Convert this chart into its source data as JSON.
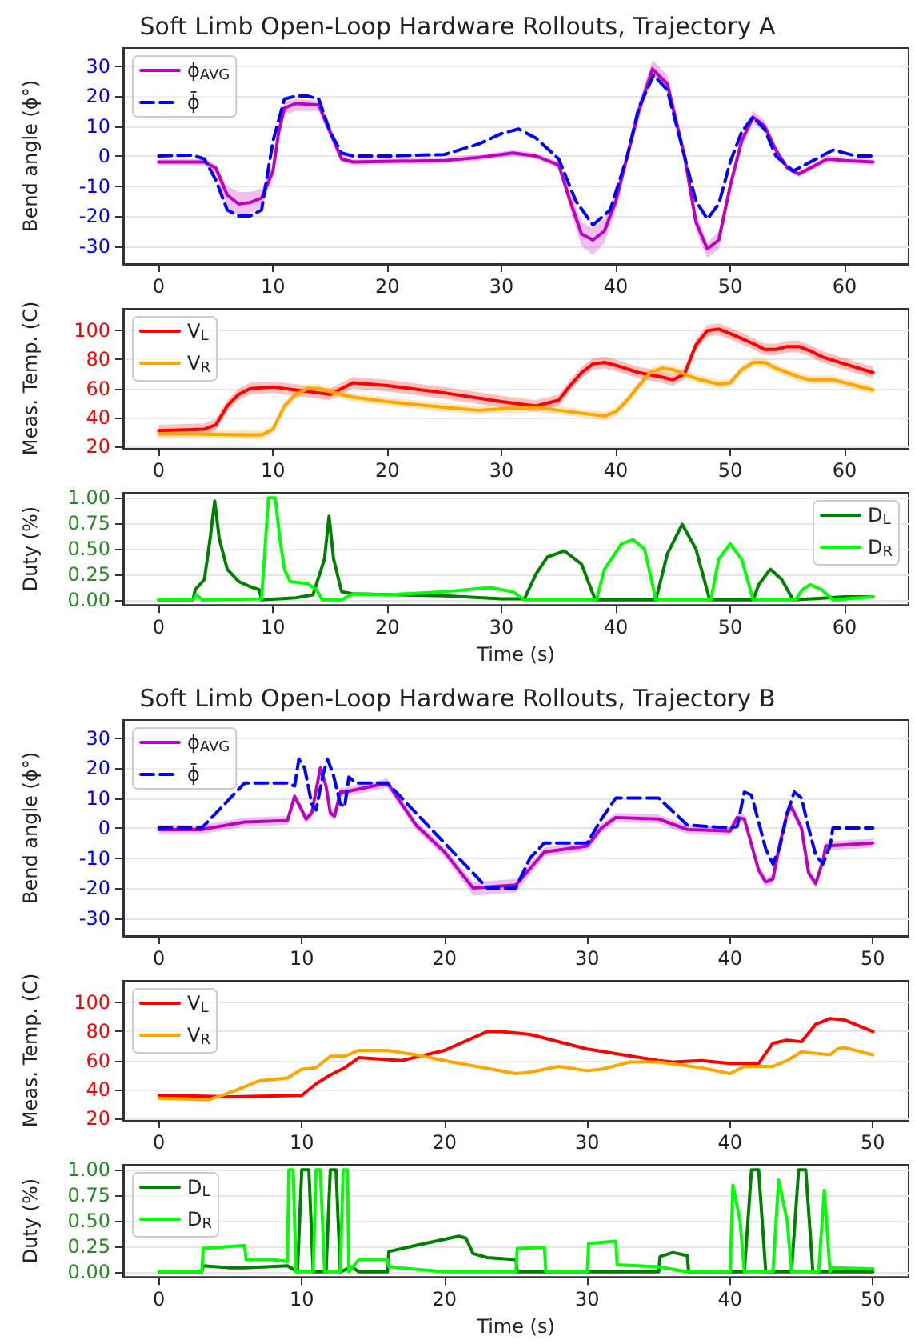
{
  "chart_data": [
    {
      "type": "line",
      "title": "Soft Limb Open-Loop Hardware Rollouts, Trajectory A",
      "ylabel": "Bend angle (ϕ°)",
      "xlim": [
        -3.1,
        65.6
      ],
      "xticks": [
        0,
        10,
        20,
        30,
        40,
        50,
        60
      ],
      "ylim": [
        -36,
        36
      ],
      "yticks": [
        -30,
        -20,
        -10,
        0,
        10,
        20,
        30
      ],
      "grid": "y",
      "legend": "top left",
      "marker": "none",
      "series": [
        {
          "name": "ϕ$_{AVG}$",
          "color": "#bf00bf",
          "x": [
            0,
            4,
            5,
            6,
            7,
            8,
            9,
            10,
            10.5,
            11,
            12,
            14,
            15,
            16,
            17,
            25,
            28,
            31,
            33,
            35,
            36,
            37,
            38,
            39,
            40,
            41,
            42,
            43.2,
            44.5,
            46,
            47,
            48,
            49,
            50,
            51,
            52,
            53,
            54,
            55,
            56,
            57,
            58.5,
            60,
            62.5
          ],
          "values": [
            -2,
            -2,
            -4,
            -13,
            -16,
            -15.5,
            -14,
            -5,
            8,
            16,
            17.5,
            17,
            8,
            -1,
            -2,
            -1.5,
            -0.5,
            1,
            0,
            -3,
            -15,
            -26,
            -28,
            -25,
            -15,
            0,
            15,
            29,
            24,
            0,
            -22,
            -31,
            -28,
            -10,
            5,
            13,
            10,
            2,
            -4,
            -6,
            -4,
            -1,
            -1.5,
            -2
          ],
          "lower": [
            -3,
            -3,
            -6,
            -17,
            -20,
            -19,
            -17,
            -7,
            6,
            14,
            15,
            15,
            6,
            -2,
            -3,
            -2.5,
            -1.5,
            0,
            -1,
            -4,
            -18,
            -30,
            -33,
            -29,
            -18,
            -2,
            12,
            27,
            21,
            -2,
            -25,
            -34,
            -31,
            -12,
            3,
            11,
            8,
            1,
            -5,
            -7,
            -5,
            -2,
            -2.5,
            -3
          ],
          "upper": [
            -1,
            -1,
            -3,
            -10,
            -12,
            -12,
            -11,
            -3,
            10,
            18,
            19,
            18.5,
            10,
            0,
            -1,
            -0.5,
            0.5,
            2,
            1,
            -2,
            -12,
            -22,
            -24,
            -21,
            -12,
            2,
            18,
            32,
            27,
            2,
            -19,
            -29,
            -25,
            -8,
            7,
            15,
            12,
            3,
            -3,
            -5,
            -3,
            0,
            -0.5,
            -1
          ]
        },
        {
          "name": "ϕ̄",
          "color": "#0000ff",
          "line_style": "dashed",
          "x": [
            0,
            3,
            4,
            5,
            6,
            7,
            8,
            9,
            10,
            11,
            12,
            13,
            14,
            15,
            16,
            17,
            20,
            25,
            28,
            30,
            31.5,
            33,
            35,
            36.5,
            38,
            39.5,
            41,
            42,
            43.3,
            44.5,
            46,
            47,
            48,
            49,
            50,
            51,
            52,
            53,
            54,
            55.5,
            57,
            59,
            61,
            62.5
          ],
          "values": [
            0,
            0.3,
            -1,
            -8,
            -18,
            -20,
            -20,
            -18,
            5,
            19,
            20,
            20,
            19,
            8,
            1,
            0,
            0,
            0.5,
            4,
            7.5,
            9,
            6,
            -1,
            -15,
            -23,
            -18,
            0,
            16,
            27,
            22,
            0,
            -15,
            -21,
            -16,
            -2,
            8,
            13,
            9,
            0,
            -5,
            -2,
            2,
            0,
            0
          ]
        }
      ]
    },
    {
      "type": "line",
      "ylabel": "Meas. Temp. (C)",
      "xlim": [
        -3.1,
        65.6
      ],
      "xticks": [
        0,
        10,
        20,
        30,
        40,
        50,
        60
      ],
      "ylim": [
        19,
        115
      ],
      "yticks": [
        20,
        40,
        60,
        80,
        100
      ],
      "grid": "y",
      "legend": "top left",
      "marker": "none",
      "series": [
        {
          "name": "V$_{L}$",
          "color": "#ff0000",
          "x": [
            0,
            4,
            5,
            6,
            7,
            8,
            10,
            12,
            14,
            15,
            16,
            17,
            20,
            25,
            30,
            33,
            35,
            36,
            37,
            38,
            39,
            40,
            42,
            44,
            45,
            46,
            47,
            48,
            49,
            50,
            52,
            53,
            54,
            55,
            56,
            57,
            58,
            60,
            62.5
          ],
          "values": [
            31,
            32,
            35,
            48,
            56,
            60,
            61,
            59,
            57,
            56,
            60,
            64,
            62,
            57,
            51,
            48,
            52,
            62,
            71,
            77,
            78,
            76,
            71,
            68,
            66,
            70,
            90,
            100,
            101,
            98,
            91,
            87,
            87,
            89,
            89,
            86,
            82,
            77,
            71
          ],
          "lower": [
            27,
            28,
            31,
            44,
            52,
            56,
            57,
            55,
            53,
            52,
            56,
            60,
            58,
            53,
            47,
            44,
            48,
            58,
            67,
            73,
            74,
            72,
            67,
            64,
            62,
            66,
            86,
            96,
            97,
            94,
            87,
            83,
            83,
            85,
            85,
            82,
            78,
            73,
            67
          ],
          "upper": [
            35,
            36,
            39,
            52,
            60,
            64,
            65,
            63,
            61,
            60,
            64,
            68,
            66,
            61,
            55,
            52,
            56,
            66,
            75,
            81,
            82,
            80,
            75,
            72,
            70,
            74,
            94,
            104,
            105,
            102,
            95,
            91,
            91,
            93,
            93,
            90,
            86,
            81,
            75
          ]
        },
        {
          "name": "V$_{R}$",
          "color": "#ffa500",
          "x": [
            0,
            9,
            10,
            11,
            12,
            13,
            14,
            15,
            17,
            20,
            25,
            28,
            30,
            33,
            35,
            38,
            39,
            40,
            41,
            42,
            43,
            44,
            45,
            47,
            49,
            50,
            51,
            52,
            53,
            54,
            56,
            57,
            59,
            61,
            62.5
          ],
          "values": [
            29,
            28,
            32,
            48,
            56,
            60,
            60,
            58,
            54,
            51,
            47,
            45,
            46,
            47,
            45,
            42,
            41,
            44,
            52,
            62,
            71,
            74,
            73,
            67,
            63,
            64,
            73,
            78,
            78,
            74,
            68,
            66,
            66,
            62,
            59
          ],
          "lower": [
            26,
            25,
            29,
            45,
            53,
            57,
            57,
            55,
            51,
            48,
            44,
            42,
            43,
            44,
            42,
            39,
            38,
            41,
            49,
            59,
            68,
            71,
            70,
            64,
            60,
            61,
            70,
            75,
            75,
            71,
            65,
            63,
            63,
            59,
            56
          ],
          "upper": [
            32,
            31,
            35,
            51,
            59,
            63,
            63,
            61,
            57,
            54,
            50,
            48,
            49,
            50,
            48,
            45,
            44,
            47,
            55,
            65,
            74,
            77,
            76,
            70,
            66,
            67,
            76,
            81,
            81,
            77,
            71,
            69,
            69,
            65,
            62
          ]
        }
      ]
    },
    {
      "type": "line",
      "ylabel": "Duty (%)",
      "xlabel": "Time (s)",
      "xlim": [
        -3.1,
        65.6
      ],
      "xticks": [
        0,
        10,
        20,
        30,
        40,
        50,
        60
      ],
      "ylim": [
        -0.05,
        1.05
      ],
      "yticks": [
        {
          "value": 0,
          "label": "0.00"
        },
        {
          "value": 0.25,
          "label": "0.25"
        },
        {
          "value": 0.5,
          "label": "0.50"
        },
        {
          "value": 0.75,
          "label": "0.75"
        },
        {
          "value": 1,
          "label": "1.00"
        }
      ],
      "grid": "y",
      "legend": "top right",
      "marker": "none",
      "series": [
        {
          "name": "D$_{L}$",
          "color": "#008000",
          "x": [
            0,
            3,
            3.2,
            4,
            4.5,
            4.9,
            5.3,
            6,
            7,
            8,
            8.8,
            9,
            12,
            13.5,
            14.5,
            14.9,
            15.3,
            16,
            17,
            25,
            30,
            32,
            33,
            34,
            35.5,
            37,
            38.2,
            43.5,
            44.5,
            45.8,
            47,
            48.2,
            52,
            52.5,
            53.5,
            54.5,
            55.5,
            60,
            62.5
          ],
          "values": [
            0,
            0,
            0.1,
            0.2,
            0.6,
            0.97,
            0.6,
            0.3,
            0.18,
            0.13,
            0.1,
            0,
            0.02,
            0.05,
            0.4,
            0.82,
            0.4,
            0.08,
            0.06,
            0.04,
            0.01,
            0.01,
            0.25,
            0.42,
            0.48,
            0.35,
            0,
            0,
            0.45,
            0.74,
            0.5,
            0,
            0,
            0.15,
            0.3,
            0.2,
            0,
            0.03,
            0.03
          ]
        },
        {
          "name": "D$_{R}$",
          "color": "#00ff00",
          "x": [
            0,
            3,
            3.3,
            3.8,
            9,
            9.3,
            9.6,
            10.2,
            10.6,
            11,
            11.5,
            13,
            13.8,
            14.3,
            16,
            17,
            20,
            25,
            29,
            31,
            32,
            38.3,
            39,
            40.5,
            41.5,
            42.5,
            43.5,
            48.3,
            49,
            50,
            51,
            52,
            55.7,
            56.3,
            57,
            58,
            59,
            62.5
          ],
          "values": [
            0,
            0,
            0.05,
            0,
            0.01,
            0.5,
            1,
            1,
            0.6,
            0.3,
            0.18,
            0.16,
            0.1,
            0,
            0,
            0.06,
            0.05,
            0.08,
            0.12,
            0.08,
            0,
            0,
            0.3,
            0.55,
            0.59,
            0.5,
            0,
            0,
            0.4,
            0.55,
            0.4,
            0,
            0,
            0.1,
            0.15,
            0.1,
            0,
            0.03
          ]
        }
      ]
    },
    {
      "type": "line",
      "title": "Soft Limb Open-Loop Hardware Rollouts, Trajectory B",
      "ylabel": "Bend angle (ϕ°)",
      "xlim": [
        -2.5,
        52.5
      ],
      "xticks": [
        0,
        10,
        20,
        30,
        40,
        50
      ],
      "ylim": [
        -36,
        36
      ],
      "yticks": [
        -30,
        -20,
        -10,
        0,
        10,
        20,
        30
      ],
      "grid": "y",
      "legend": "top left",
      "marker": "none",
      "series": [
        {
          "name": "ϕ$_{AVG}$",
          "color": "#bf00bf",
          "x": [
            0,
            3,
            6,
            9,
            9.5,
            10,
            10.3,
            10.7,
            11.3,
            11.7,
            12,
            12.3,
            12.7,
            13,
            16,
            18,
            20,
            22,
            25,
            27,
            30,
            31,
            32,
            35,
            37,
            40,
            40.5,
            41,
            42,
            42.5,
            43,
            43.5,
            44,
            44.3,
            45,
            45.5,
            46,
            46.5,
            46.7,
            50
          ],
          "values": [
            -0.5,
            -0.5,
            2,
            2.5,
            10.5,
            6,
            3,
            5,
            20,
            14,
            5,
            4,
            12,
            12,
            15,
            1,
            -8,
            -20,
            -19,
            -8,
            -6,
            0,
            3.5,
            3,
            -0.5,
            -1,
            3.5,
            3,
            -14,
            -18,
            -17,
            -5,
            5,
            7,
            0,
            -15,
            -18.5,
            -11,
            -6,
            -5
          ],
          "lower": [
            -2,
            -2,
            0.5,
            1,
            9,
            4.5,
            1.5,
            3.5,
            18.5,
            12.5,
            3.5,
            2.5,
            10.5,
            10.5,
            13.5,
            -0.5,
            -9.5,
            -22.5,
            -21.5,
            -9.5,
            -7.5,
            -1.5,
            2,
            1.5,
            -2,
            -2.5,
            2,
            1.5,
            -15.5,
            -19.5,
            -18.5,
            -6.5,
            3.5,
            5.5,
            -1.5,
            -16.5,
            -20,
            -12.5,
            -7.5,
            -6.5
          ],
          "upper": [
            1,
            1,
            3.5,
            4,
            12,
            7.5,
            4.5,
            6.5,
            21.5,
            15.5,
            6.5,
            5.5,
            13.5,
            13.5,
            16.5,
            2.5,
            -6.5,
            -18,
            -17,
            -6.5,
            -4.5,
            1.5,
            5,
            4.5,
            1,
            0.5,
            5,
            4.5,
            -12.5,
            -16.5,
            -15.5,
            -3.5,
            6.5,
            8.5,
            1.5,
            -13.5,
            -17,
            -9.5,
            -4.5,
            -3.5
          ]
        },
        {
          "name": "ϕ̄",
          "color": "#0000ff",
          "line_style": "dashed",
          "x": [
            0,
            3,
            6,
            9,
            9.5,
            9.8,
            10.2,
            10.7,
            11,
            11.5,
            11.8,
            12.2,
            12.7,
            13,
            13.3,
            13.8,
            16,
            20,
            23,
            25,
            26,
            27,
            30,
            31,
            32,
            35,
            37,
            40,
            40.5,
            41,
            41.5,
            42,
            42.5,
            43,
            43.5,
            44,
            44.5,
            45,
            45.5,
            46,
            46.5,
            47,
            47.2,
            50
          ],
          "values": [
            0,
            0,
            15,
            15,
            14,
            23,
            20,
            8,
            6,
            18,
            23,
            18,
            8,
            7,
            17,
            15,
            15,
            -5,
            -20,
            -20,
            -10,
            -5,
            -5,
            3,
            10,
            10,
            1,
            0,
            0.5,
            12,
            11,
            2,
            -7,
            -12,
            -6,
            5,
            12,
            10,
            0,
            -9,
            -12,
            -6,
            0,
            0
          ]
        }
      ]
    },
    {
      "type": "line",
      "ylabel": "Meas. Temp. (C)",
      "xlim": [
        -2.5,
        52.5
      ],
      "xticks": [
        0,
        10,
        20,
        30,
        40,
        50
      ],
      "ylim": [
        19,
        115
      ],
      "yticks": [
        20,
        40,
        60,
        80,
        100
      ],
      "grid": "y",
      "legend": "top left",
      "marker": "none",
      "series": [
        {
          "name": "V$_{L}$",
          "color": "#ff0000",
          "x": [
            0,
            5,
            10,
            11,
            12,
            13,
            14,
            17,
            20,
            23,
            24,
            26,
            30,
            35,
            36,
            38,
            40,
            42,
            43,
            44,
            45,
            46,
            47,
            48,
            50
          ],
          "values": [
            36,
            35,
            36,
            44,
            50,
            55,
            62,
            60,
            67,
            80,
            80,
            78,
            68,
            60,
            59,
            60,
            58,
            58,
            72,
            74,
            73,
            85,
            89,
            88,
            80
          ]
        },
        {
          "name": "V$_{R}$",
          "color": "#ffa500",
          "x": [
            0,
            3.5,
            5,
            7,
            9,
            10,
            11,
            12,
            13,
            14,
            16,
            18,
            20,
            25,
            26,
            28,
            30,
            31,
            33,
            35,
            38,
            40,
            41,
            43,
            44,
            45,
            46,
            47,
            47.5,
            48,
            50
          ],
          "values": [
            34,
            33,
            38,
            46,
            48,
            54,
            55,
            63,
            63,
            67,
            67,
            64,
            60,
            51,
            52,
            56,
            53,
            54,
            59,
            59,
            55,
            51,
            56,
            56,
            60,
            66,
            65,
            64,
            68,
            69,
            64
          ]
        }
      ]
    },
    {
      "type": "line",
      "ylabel": "Duty (%)",
      "xlabel": "Time (s)",
      "xlim": [
        -2.5,
        52.5
      ],
      "xticks": [
        0,
        10,
        20,
        30,
        40,
        50
      ],
      "ylim": [
        -0.05,
        1.05
      ],
      "yticks": [
        {
          "value": 0,
          "label": "0.00"
        },
        {
          "value": 0.25,
          "label": "0.25"
        },
        {
          "value": 0.5,
          "label": "0.50"
        },
        {
          "value": 0.75,
          "label": "0.75"
        },
        {
          "value": 1,
          "label": "1.00"
        }
      ],
      "grid": "y",
      "legend": "top left",
      "marker": "none",
      "series": [
        {
          "name": "D$_{L}$",
          "color": "#008000",
          "x": [
            0,
            3,
            3.1,
            5,
            6,
            9,
            9.7,
            10,
            10.5,
            10.8,
            11.7,
            12,
            12.4,
            12.7,
            13.5,
            14,
            16,
            16.1,
            18,
            21,
            21.5,
            22,
            23,
            25,
            25.1,
            35,
            35.1,
            36,
            37,
            37.1,
            41,
            41.5,
            42,
            42.5,
            44.3,
            44.8,
            45.3,
            45.8,
            50
          ],
          "values": [
            0,
            0,
            0.06,
            0.04,
            0.04,
            0.06,
            0,
            1,
            1,
            0,
            0,
            1,
            1,
            0,
            0.05,
            0,
            0,
            0.2,
            0.26,
            0.35,
            0.33,
            0.18,
            0.14,
            0.12,
            0,
            0,
            0.15,
            0.19,
            0.16,
            0,
            0,
            1,
            1,
            0,
            0,
            1,
            1,
            0,
            0
          ]
        },
        {
          "name": "D$_{R}$",
          "color": "#00ff00",
          "x": [
            0,
            3,
            3.1,
            6,
            6.1,
            8,
            9,
            9.1,
            9.4,
            9.6,
            10.8,
            11,
            11.3,
            11.6,
            12.7,
            12.9,
            13.2,
            13.3,
            14,
            16,
            16.1,
            20,
            25,
            25.1,
            27,
            27.1,
            30,
            30.1,
            32,
            32.1,
            35,
            37,
            40,
            40.2,
            40.7,
            41,
            43,
            43.4,
            44,
            44.3,
            46.2,
            46.6,
            47,
            47.1,
            50
          ],
          "values": [
            0,
            0,
            0.23,
            0.26,
            0.12,
            0.12,
            0.1,
            1,
            1,
            0,
            0,
            1,
            1,
            0,
            0,
            1,
            1,
            0,
            0.12,
            0.12,
            0.05,
            0,
            0,
            0.23,
            0.24,
            0,
            0,
            0.28,
            0.3,
            0.07,
            0.05,
            0,
            0,
            0.85,
            0.5,
            0,
            0,
            0.9,
            0.5,
            0,
            0,
            0.8,
            0,
            0.04,
            0.03
          ]
        }
      ]
    }
  ]
}
